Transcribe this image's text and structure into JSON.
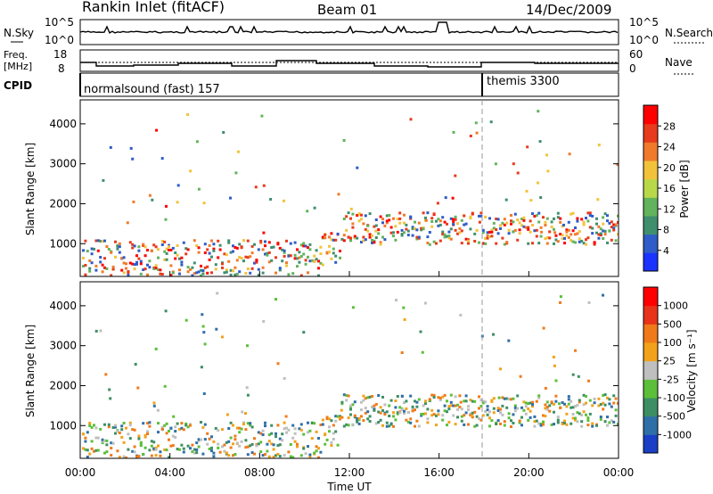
{
  "header": {
    "station": "Rankin Inlet (fitACF)",
    "beam": "Beam 01",
    "date": "14/Dec/2009"
  },
  "strip_labels": {
    "nsky": "N.Sky",
    "nsearch": "N.Search",
    "freq": "Freq.",
    "freq_unit": "[MHz]",
    "nave": "Nave",
    "cpid": "CPID",
    "nsky_ticks": [
      "10^5",
      "10^0"
    ],
    "nsearch_ticks": [
      "10^5",
      "10^0"
    ],
    "freq_ticks": [
      "18",
      "8"
    ],
    "nave_ticks": [
      "60",
      "0"
    ],
    "cpid_program_1": "normalsound (fast) 157",
    "cpid_program_2": "themis 3300"
  },
  "chart_data": [
    {
      "type": "heatmap",
      "panel": "power",
      "ylabel": "Slant Range [km]",
      "yticks": [
        "1000",
        "2000",
        "3000",
        "4000"
      ],
      "ylim": [
        180,
        4600
      ],
      "colorbar_label": "Power [dB]",
      "colorbar_ticks": [
        "4",
        "8",
        "12",
        "16",
        "20",
        "24",
        "28"
      ],
      "colorbar_colors": [
        "#1a33ff",
        "#2f5cc8",
        "#3f8f6e",
        "#63b35c",
        "#b8d84a",
        "#f2c33a",
        "#f07a2a",
        "#e83a1c",
        "#ff0000"
      ]
    },
    {
      "type": "heatmap",
      "panel": "velocity",
      "ylabel": "Slant Range [km]",
      "yticks": [
        "1000",
        "2000",
        "3000",
        "4000"
      ],
      "ylim": [
        180,
        4600
      ],
      "colorbar_label": "Velocity [m s⁻¹]",
      "colorbar_ticks": [
        "1000",
        "500",
        "100",
        "25",
        "-25",
        "-100",
        "-500",
        "-1000"
      ],
      "colorbar_colors": [
        "#1a3fc6",
        "#2f6fa8",
        "#3d8f63",
        "#5cbf3a",
        "#bfbfbf",
        "#f2a21a",
        "#f07a1a",
        "#e8331a",
        "#ff0000"
      ],
      "xlabel": "Time UT",
      "xticks": [
        "00:00",
        "04:00",
        "08:00",
        "12:00",
        "16:00",
        "20:00",
        "00:00"
      ]
    }
  ]
}
